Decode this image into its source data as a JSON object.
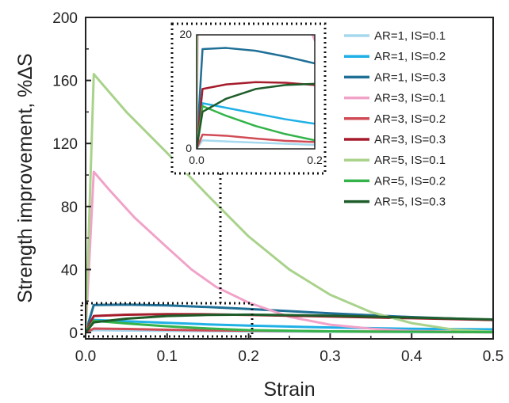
{
  "chart_data": {
    "type": "line",
    "title": "",
    "xlabel": "Strain",
    "ylabel": "Strength improvement, %ΔS",
    "xlim": [
      0,
      0.5
    ],
    "ylim": [
      -4,
      200
    ],
    "xticks": [
      0.0,
      0.1,
      0.2,
      0.3,
      0.4,
      0.5
    ],
    "xtick_labels": [
      "0.0",
      "0.1",
      "0.2",
      "0.3",
      "0.4",
      "0.5"
    ],
    "yticks": [
      0,
      40,
      80,
      120,
      160,
      200
    ],
    "ytick_labels": [
      "0",
      "40",
      "80",
      "120",
      "160",
      "200"
    ],
    "grid": false,
    "legend_position": "top-right",
    "series": [
      {
        "name": "AR=1, IS=0.1",
        "color": "#a6d8ee",
        "points": [
          [
            0,
            0
          ],
          [
            0.01,
            1.5
          ],
          [
            0.05,
            1.3
          ],
          [
            0.1,
            1.1
          ],
          [
            0.15,
            0.9
          ],
          [
            0.2,
            0.7
          ],
          [
            0.3,
            0.5
          ],
          [
            0.4,
            0.3
          ],
          [
            0.5,
            0.2
          ]
        ]
      },
      {
        "name": "AR=1, IS=0.2",
        "color": "#1fb0e6",
        "points": [
          [
            0,
            0
          ],
          [
            0.01,
            8
          ],
          [
            0.05,
            7.2
          ],
          [
            0.1,
            6.2
          ],
          [
            0.15,
            5.2
          ],
          [
            0.2,
            4.4
          ],
          [
            0.3,
            3.2
          ],
          [
            0.4,
            2.4
          ],
          [
            0.5,
            2
          ]
        ]
      },
      {
        "name": "AR=1, IS=0.3",
        "color": "#1f6f96",
        "points": [
          [
            0,
            0
          ],
          [
            0.01,
            17.5
          ],
          [
            0.05,
            17.7
          ],
          [
            0.1,
            17.2
          ],
          [
            0.15,
            16.2
          ],
          [
            0.2,
            15
          ],
          [
            0.3,
            12.2
          ],
          [
            0.4,
            9.8
          ],
          [
            0.5,
            8
          ]
        ]
      },
      {
        "name": "AR=3, IS=0.1",
        "color": "#f1a2c8",
        "points": [
          [
            0,
            0
          ],
          [
            0.01,
            102
          ],
          [
            0.03,
            90
          ],
          [
            0.06,
            73
          ],
          [
            0.1,
            54
          ],
          [
            0.13,
            40
          ],
          [
            0.16,
            29
          ],
          [
            0.2,
            19
          ],
          [
            0.25,
            10
          ],
          [
            0.3,
            5
          ],
          [
            0.35,
            2.5
          ],
          [
            0.4,
            1
          ],
          [
            0.5,
            0
          ]
        ]
      },
      {
        "name": "AR=3, IS=0.2",
        "color": "#d04b55",
        "points": [
          [
            0,
            0
          ],
          [
            0.01,
            2.5
          ],
          [
            0.05,
            2.3
          ],
          [
            0.1,
            1.8
          ],
          [
            0.15,
            1.4
          ],
          [
            0.2,
            1.2
          ],
          [
            0.3,
            0.8
          ],
          [
            0.4,
            0.5
          ],
          [
            0.5,
            0.3
          ]
        ]
      },
      {
        "name": "AR=3, IS=0.3",
        "color": "#a51c2c",
        "points": [
          [
            0,
            0
          ],
          [
            0.01,
            10.5
          ],
          [
            0.05,
            11.3
          ],
          [
            0.1,
            11.7
          ],
          [
            0.15,
            11.6
          ],
          [
            0.2,
            11.2
          ],
          [
            0.3,
            10.2
          ],
          [
            0.4,
            9.1
          ],
          [
            0.5,
            8
          ]
        ]
      },
      {
        "name": "AR=5, IS=0.1",
        "color": "#a9d28b",
        "points": [
          [
            0,
            0
          ],
          [
            0.01,
            164
          ],
          [
            0.05,
            140
          ],
          [
            0.1,
            114
          ],
          [
            0.15,
            87
          ],
          [
            0.2,
            61
          ],
          [
            0.25,
            40
          ],
          [
            0.3,
            24
          ],
          [
            0.35,
            13
          ],
          [
            0.4,
            6
          ],
          [
            0.45,
            2
          ],
          [
            0.5,
            0.5
          ]
        ]
      },
      {
        "name": "AR=5, IS=0.2",
        "color": "#33b349",
        "points": [
          [
            0,
            0
          ],
          [
            0.01,
            7.5
          ],
          [
            0.05,
            5.8
          ],
          [
            0.1,
            4
          ],
          [
            0.15,
            2.6
          ],
          [
            0.2,
            1.5
          ],
          [
            0.3,
            0.8
          ],
          [
            0.4,
            0.5
          ],
          [
            0.5,
            0.3
          ]
        ]
      },
      {
        "name": "AR=5, IS=0.3",
        "color": "#1e5d2a",
        "points": [
          [
            0,
            0
          ],
          [
            0.01,
            6.5
          ],
          [
            0.05,
            8.8
          ],
          [
            0.1,
            10.5
          ],
          [
            0.15,
            11.2
          ],
          [
            0.2,
            11.4
          ],
          [
            0.3,
            10.7
          ],
          [
            0.4,
            9.5
          ],
          [
            0.5,
            8.3
          ]
        ]
      }
    ],
    "inset": {
      "xlim": [
        0,
        0.2
      ],
      "ylim": [
        0,
        20
      ],
      "xtick_labels": [
        "0.0",
        "0.2"
      ],
      "ytick_labels": [
        "0",
        "20"
      ]
    }
  }
}
